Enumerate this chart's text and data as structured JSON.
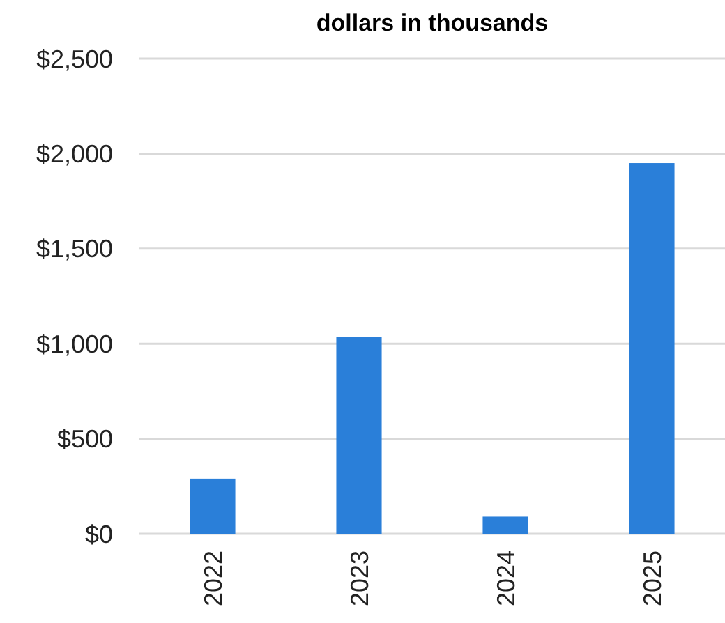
{
  "chart_data": {
    "type": "bar",
    "title": "dollars in thousands",
    "categories": [
      "2022",
      "2023",
      "2024",
      "2025"
    ],
    "values": [
      290,
      1035,
      90,
      1950
    ],
    "color": "#2a7fd9",
    "ylim": [
      0,
      2500
    ],
    "yticks": [
      {
        "value": 0,
        "label": "$0"
      },
      {
        "value": 500,
        "label": "$500"
      },
      {
        "value": 1000,
        "label": "$1,000"
      },
      {
        "value": 1500,
        "label": "$1,500"
      },
      {
        "value": 2000,
        "label": "$2,000"
      },
      {
        "value": 2500,
        "label": "$2,500"
      }
    ],
    "grid": true
  }
}
